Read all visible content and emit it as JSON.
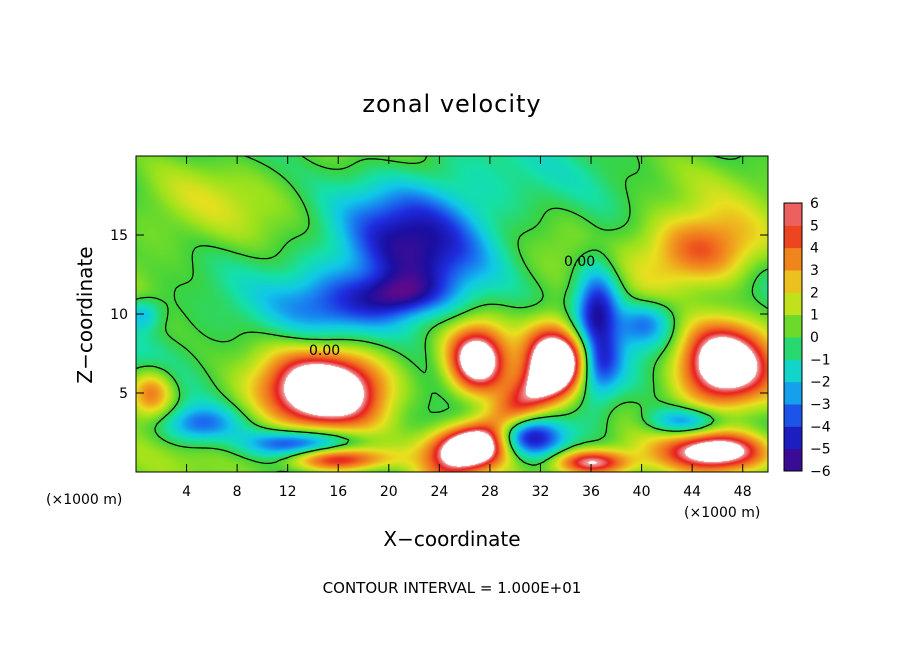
{
  "chart_data": {
    "type": "heatmap",
    "title": "zonal velocity",
    "xlabel": "X−coordinate",
    "ylabel": "Z−coordinate",
    "x_unit_label": "(×1000 m)",
    "y_unit_label": "(×1000 m)",
    "xlim": [
      0,
      50
    ],
    "ylim": [
      0,
      20
    ],
    "x_ticks": [
      4,
      8,
      12,
      16,
      20,
      24,
      28,
      32,
      36,
      40,
      44,
      48
    ],
    "x_tick_labels": [
      "4",
      "8",
      "12",
      "16",
      "20",
      "24",
      "28",
      "32",
      "36",
      "40",
      "44",
      "48"
    ],
    "y_ticks": [
      5,
      10,
      15
    ],
    "y_tick_labels": [
      "5",
      "10",
      "15"
    ],
    "colorbar": {
      "min": -6,
      "max": 6,
      "ticks": [
        -6,
        -5,
        -4,
        -3,
        -2,
        -1,
        0,
        1,
        2,
        3,
        4,
        5,
        6
      ],
      "tick_labels": [
        "−6",
        "−5",
        "−4",
        "−3",
        "−2",
        "−1",
        "0",
        "1",
        "2",
        "3",
        "4",
        "5",
        "6"
      ]
    },
    "contour_labels": [
      "0.00",
      "0.00"
    ],
    "footnote": "CONTOUR INTERVAL = 1.000E+01",
    "colors": {
      "scale": [
        "#5b0a8c",
        "#1a0fa0",
        "#1e2ee0",
        "#1a78f0",
        "#10c8e8",
        "#14e0a8",
        "#3cd23c",
        "#9ae21c",
        "#e8e01e",
        "#f0a01e",
        "#f06a1e",
        "#e82020",
        "#f0a0a0"
      ],
      "out_of_range_high": "#ffffff",
      "contour_line": "#000000"
    },
    "field_features": [
      {
        "type": "jet",
        "x": 30,
        "z": 4,
        "sx": 9,
        "sz": 1.5,
        "value": 5,
        "theta": -0.6
      },
      {
        "type": "blob",
        "x": 15,
        "z": 5.2,
        "sx": 4.5,
        "sz": 2.4,
        "value": 9
      },
      {
        "type": "blob",
        "x": 27,
        "z": 7,
        "sx": 2.3,
        "sz": 2.2,
        "value": 8
      },
      {
        "type": "blob",
        "x": 33,
        "z": 7.2,
        "sx": 2.3,
        "sz": 2.3,
        "value": 8
      },
      {
        "type": "blob",
        "x": 46.5,
        "z": 6.8,
        "sx": 3.5,
        "sz": 2.5,
        "value": 9
      },
      {
        "type": "blob",
        "x": 45,
        "z": 14,
        "sx": 4.5,
        "sz": 2.3,
        "value": 4.5
      },
      {
        "type": "blob",
        "x": 46,
        "z": 1.3,
        "sx": 4,
        "sz": 1.2,
        "value": 7.5
      },
      {
        "type": "blob",
        "x": 26.5,
        "z": 1.5,
        "sx": 3.5,
        "sz": 1.3,
        "value": 7
      },
      {
        "type": "blob",
        "x": 16,
        "z": 0.8,
        "sx": 4,
        "sz": 0.8,
        "value": 6
      },
      {
        "type": "blob",
        "x": 36,
        "z": 0.6,
        "sx": 3,
        "sz": 0.8,
        "value": 6
      },
      {
        "type": "blob",
        "x": 1.2,
        "z": 5,
        "sx": 1.8,
        "sz": 1.5,
        "value": 4
      },
      {
        "type": "blob",
        "x": 22,
        "z": 14,
        "sx": 6,
        "sz": 4.5,
        "value": -4.5
      },
      {
        "type": "blob",
        "x": 21,
        "z": 11.2,
        "sx": 3,
        "sz": 1.3,
        "value": -3
      },
      {
        "type": "blob",
        "x": 36.5,
        "z": 9,
        "sx": 1.8,
        "sz": 4,
        "value": -6
      },
      {
        "type": "blob",
        "x": 40,
        "z": 9.5,
        "sx": 2.5,
        "sz": 1.5,
        "value": -3
      },
      {
        "type": "blob",
        "x": 31,
        "z": 2.2,
        "sx": 3,
        "sz": 1.3,
        "value": -5
      },
      {
        "type": "blob",
        "x": 13,
        "z": 1.8,
        "sx": 4,
        "sz": 0.9,
        "value": -4.5
      },
      {
        "type": "blob",
        "x": 5,
        "z": 3,
        "sx": 3,
        "sz": 1.2,
        "value": -3.5
      },
      {
        "type": "blob",
        "x": 43.5,
        "z": 3.2,
        "sx": 3,
        "sz": 0.9,
        "value": -3.5
      },
      {
        "type": "blob",
        "x": 16,
        "z": 10.5,
        "sx": 5,
        "sz": 2,
        "value": -2.5
      },
      {
        "type": "blob",
        "x": 4,
        "z": 17,
        "sx": 6,
        "sz": 3,
        "value": 0.8
      },
      {
        "type": "blob",
        "x": 0.5,
        "z": 10,
        "sx": 1.5,
        "sz": 1,
        "value": -2.5
      }
    ]
  }
}
